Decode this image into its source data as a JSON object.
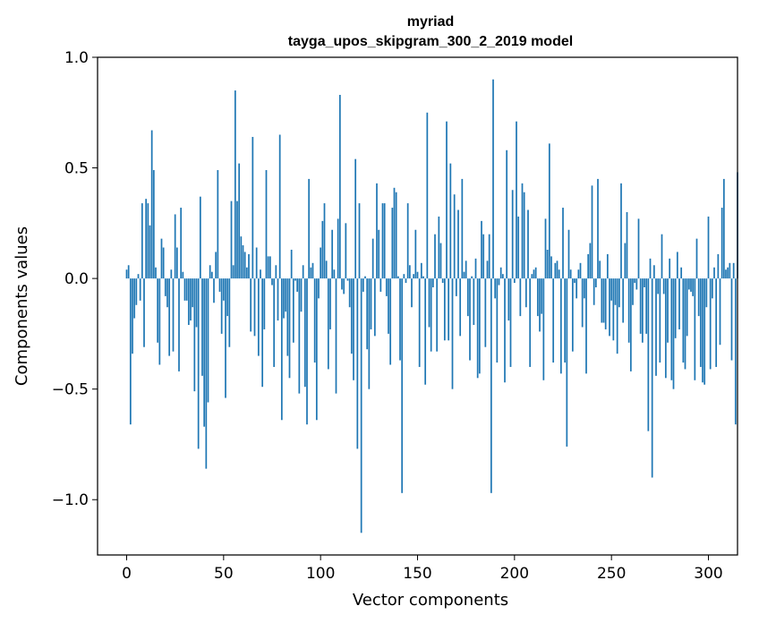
{
  "colors": {
    "bar": "#1f77b4",
    "axis": "#000000",
    "background": "#ffffff"
  },
  "chart_data": {
    "type": "bar",
    "title": "myriad",
    "subtitle": "tayga_upos_skipgram_300_2_2019 model",
    "xlabel": "Vector components",
    "ylabel": "Components values",
    "xlim": [
      -15,
      315
    ],
    "ylim": [
      -1.25,
      1.0
    ],
    "xticks": [
      0,
      50,
      100,
      150,
      200,
      250,
      300
    ],
    "xtick_labels": [
      "0",
      "50",
      "100",
      "150",
      "200",
      "250",
      "300"
    ],
    "yticks": [
      -1.0,
      -0.5,
      0.0,
      0.5,
      1.0
    ],
    "ytick_labels": [
      "−1.0",
      "−0.5",
      "0.0",
      "0.5",
      "1.0"
    ],
    "grid": false,
    "values": [
      0.04,
      0.06,
      -0.66,
      -0.34,
      -0.18,
      -0.12,
      0.02,
      -0.1,
      0.34,
      -0.31,
      0.36,
      0.34,
      0.24,
      0.67,
      0.49,
      0.05,
      -0.29,
      -0.39,
      0.18,
      0.14,
      -0.08,
      -0.13,
      -0.35,
      0.04,
      -0.33,
      0.29,
      0.14,
      -0.42,
      0.32,
      0.03,
      -0.1,
      -0.1,
      -0.21,
      -0.19,
      -0.13,
      -0.51,
      -0.22,
      -0.77,
      0.37,
      -0.44,
      -0.67,
      -0.86,
      -0.56,
      0.06,
      0.03,
      -0.11,
      0.12,
      0.49,
      -0.06,
      -0.25,
      -0.1,
      -0.54,
      -0.17,
      -0.31,
      0.35,
      0.06,
      0.85,
      0.35,
      0.52,
      0.19,
      0.15,
      0.12,
      0.05,
      0.11,
      -0.24,
      0.64,
      -0.26,
      0.14,
      -0.35,
      0.04,
      -0.49,
      -0.23,
      0.49,
      0.1,
      0.1,
      -0.03,
      -0.4,
      0.06,
      -0.19,
      0.65,
      -0.64,
      -0.18,
      -0.15,
      -0.35,
      -0.45,
      0.13,
      -0.29,
      -0.01,
      -0.06,
      -0.52,
      -0.15,
      0.06,
      -0.49,
      -0.66,
      0.45,
      0.05,
      0.07,
      -0.38,
      -0.64,
      -0.09,
      0.14,
      0.26,
      0.34,
      0.08,
      -0.41,
      -0.23,
      0.22,
      0.04,
      -0.52,
      0.27,
      0.83,
      -0.05,
      -0.07,
      0.25,
      -0.01,
      -0.13,
      -0.34,
      -0.46,
      0.54,
      -0.77,
      0.34,
      -1.15,
      -0.06,
      0.01,
      -0.32,
      -0.5,
      -0.23,
      0.18,
      -0.26,
      0.43,
      0.22,
      -0.06,
      0.34,
      0.34,
      -0.08,
      -0.25,
      -0.39,
      0.32,
      0.41,
      0.39,
      0.01,
      -0.37,
      -0.97,
      0.02,
      -0.02,
      0.34,
      0.06,
      -0.13,
      0.02,
      0.22,
      0.03,
      -0.4,
      0.07,
      0.01,
      -0.48,
      0.75,
      -0.22,
      -0.33,
      -0.04,
      0.2,
      -0.33,
      0.28,
      0.16,
      -0.02,
      -0.28,
      0.71,
      -0.28,
      0.52,
      -0.5,
      0.38,
      -0.08,
      0.31,
      -0.26,
      0.45,
      0.03,
      0.08,
      -0.17,
      -0.37,
      0.01,
      -0.21,
      0.09,
      -0.45,
      -0.43,
      0.26,
      0.2,
      -0.31,
      0.08,
      0.2,
      -0.97,
      0.9,
      -0.09,
      -0.38,
      -0.03,
      0.05,
      0.02,
      -0.47,
      0.58,
      -0.19,
      -0.4,
      0.4,
      -0.02,
      0.71,
      0.28,
      -0.17,
      0.43,
      0.39,
      -0.13,
      0.31,
      -0.4,
      0.02,
      0.04,
      0.05,
      -0.17,
      -0.24,
      -0.16,
      -0.46,
      0.27,
      0.13,
      0.61,
      0.1,
      -0.38,
      0.07,
      0.08,
      0.04,
      -0.43,
      0.32,
      -0.38,
      -0.76,
      0.22,
      0.04,
      -0.33,
      -0.02,
      -0.09,
      0.04,
      0.07,
      -0.22,
      -0.09,
      -0.43,
      0.11,
      0.16,
      0.42,
      -0.12,
      -0.04,
      0.45,
      0.08,
      -0.2,
      -0.2,
      -0.23,
      0.11,
      -0.26,
      -0.1,
      -0.28,
      -0.12,
      -0.34,
      -0.13,
      0.43,
      -0.2,
      0.16,
      0.3,
      -0.29,
      -0.42,
      -0.12,
      -0.02,
      -0.05,
      0.27,
      -0.25,
      -0.29,
      -0.04,
      -0.25,
      -0.69,
      0.09,
      -0.9,
      0.06,
      -0.44,
      -0.07,
      -0.38,
      0.2,
      -0.07,
      -0.45,
      -0.29,
      0.09,
      -0.46,
      -0.5,
      -0.27,
      0.12,
      -0.23,
      0.05,
      -0.38,
      -0.41,
      -0.26,
      -0.05,
      -0.06,
      -0.08,
      -0.46,
      0.18,
      -0.17,
      -0.4,
      -0.47,
      -0.48,
      -0.13,
      0.28,
      -0.41,
      -0.09,
      0.05,
      -0.4,
      0.11,
      -0.3,
      0.32,
      0.45,
      0.04,
      0.05,
      0.07,
      -0.37,
      0.07,
      -0.66,
      0.48
    ]
  }
}
